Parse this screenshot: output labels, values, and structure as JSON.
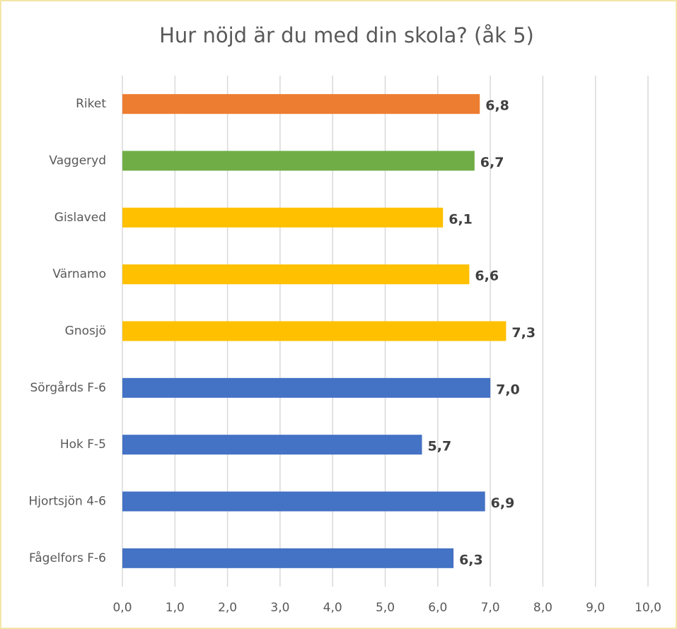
{
  "chart_data": {
    "type": "bar",
    "orientation": "horizontal",
    "title": "Hur nöjd är du med din skola? (åk 5)",
    "categories": [
      "Riket",
      "Vaggeryd",
      "Gislaved",
      "Värnamo",
      "Gnosjö",
      "Sörgårds F-6",
      "Hok F-5",
      "Hjortsjön 4-6",
      "Fågelfors F-6"
    ],
    "values": [
      6.8,
      6.7,
      6.1,
      6.6,
      7.3,
      7.0,
      5.7,
      6.9,
      6.3
    ],
    "value_labels": [
      "6,8",
      "6,7",
      "6,1",
      "6,6",
      "7,3",
      "7,0",
      "5,7",
      "6,9",
      "6,3"
    ],
    "colors": [
      "#ed7d31",
      "#70ad47",
      "#ffc000",
      "#ffc000",
      "#ffc000",
      "#4472c4",
      "#4472c4",
      "#4472c4",
      "#4472c4"
    ],
    "xlim": [
      0,
      10
    ],
    "xticks": [
      {
        "value": 0,
        "label": "0,0"
      },
      {
        "value": 1,
        "label": "1,0"
      },
      {
        "value": 2,
        "label": "2,0"
      },
      {
        "value": 3,
        "label": "3,0"
      },
      {
        "value": 4,
        "label": "4,0"
      },
      {
        "value": 5,
        "label": "5,0"
      },
      {
        "value": 6,
        "label": "6,0"
      },
      {
        "value": 7,
        "label": "7,0"
      },
      {
        "value": 8,
        "label": "8,0"
      },
      {
        "value": 9,
        "label": "9,0"
      },
      {
        "value": 10,
        "label": "10,0"
      }
    ],
    "grid": true
  }
}
